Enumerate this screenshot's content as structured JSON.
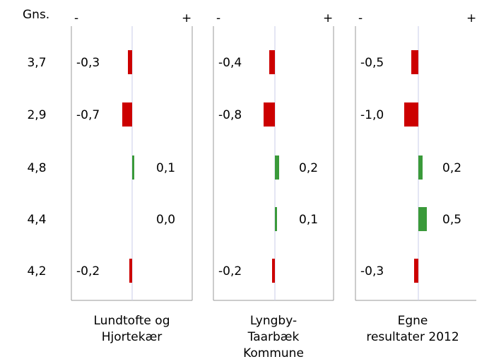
{
  "chart_data": {
    "type": "bar",
    "avg_header": "Gns.",
    "minus_label": "-",
    "plus_label": "+",
    "row_averages": [
      "3,7",
      "2,9",
      "4,8",
      "4,4",
      "4,2"
    ],
    "panels": [
      {
        "name_lines": [
          "Lundtofte og",
          "Hjortekær"
        ],
        "values": [
          -0.3,
          -0.7,
          0.1,
          0.0,
          -0.2
        ],
        "value_labels": [
          "-0,3",
          "-0,7",
          "0,1",
          "0,0",
          "-0,2"
        ]
      },
      {
        "name_lines": [
          "Lyngby-",
          "Taarbæk",
          "Kommune"
        ],
        "values": [
          -0.4,
          -0.8,
          0.2,
          0.1,
          -0.2
        ],
        "value_labels": [
          "-0,4",
          "-0,8",
          "0,2",
          "0,1",
          "-0,2"
        ]
      },
      {
        "name_lines": [
          "Egne",
          "resultater 2012"
        ],
        "values": [
          -0.5,
          -1.0,
          0.2,
          0.5,
          -0.3
        ],
        "value_labels": [
          "-0,5",
          "-1,0",
          "0,2",
          "0,5",
          "-0,3"
        ]
      }
    ],
    "xlim": [
      -1.5,
      1.5
    ],
    "colors": {
      "negative": "#cc0000",
      "positive": "#3a9a3a",
      "zero_line": "#c8cce8",
      "frame": "#999999"
    },
    "grid": false,
    "legend": "none"
  }
}
